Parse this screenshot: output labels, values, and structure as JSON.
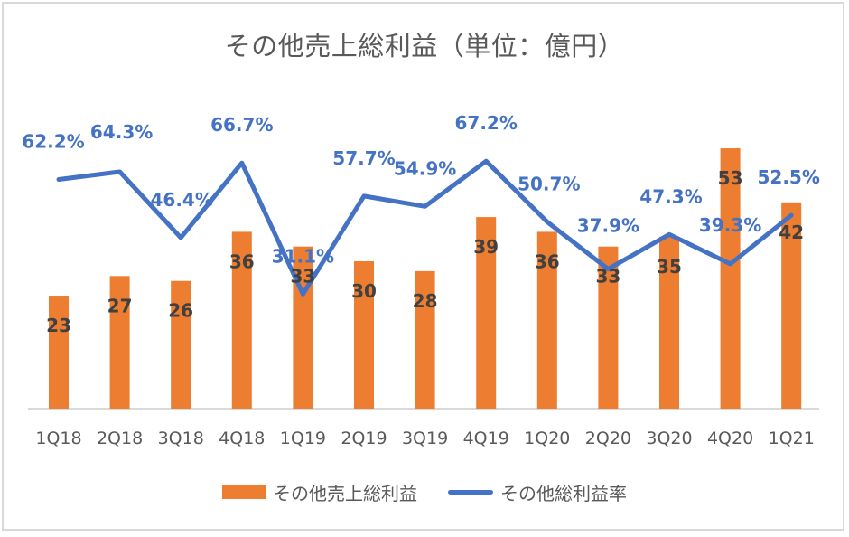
{
  "chart_data": {
    "type": "bar",
    "title": "その他売上総利益（単位：億円）",
    "categories": [
      "1Q18",
      "2Q18",
      "3Q18",
      "4Q18",
      "1Q19",
      "2Q19",
      "3Q19",
      "4Q19",
      "1Q20",
      "2Q20",
      "3Q20",
      "4Q20",
      "1Q21"
    ],
    "series": [
      {
        "name": "その他売上総利益",
        "type": "bar",
        "axis": "primary",
        "color": "#ED7D31",
        "values": [
          23,
          27,
          26,
          36,
          33,
          30,
          28,
          39,
          36,
          33,
          35,
          53,
          42
        ],
        "labels": [
          "23",
          "27",
          "26",
          "36",
          "33",
          "30",
          "28",
          "39",
          "36",
          "33",
          "35",
          "53",
          "42"
        ]
      },
      {
        "name": "その他総利益率",
        "type": "line",
        "axis": "secondary",
        "color": "#4472C4",
        "values": [
          62.2,
          64.3,
          46.4,
          66.7,
          31.1,
          57.7,
          54.9,
          67.2,
          50.7,
          37.9,
          47.3,
          39.3,
          52.5
        ],
        "labels": [
          "62.2%",
          "64.3%",
          "46.4%",
          "66.7%",
          "31.1%",
          "57.7%",
          "54.9%",
          "67.2%",
          "50.7%",
          "37.9%",
          "47.3%",
          "39.3%",
          "52.5%"
        ]
      }
    ],
    "xlabel": "",
    "ylabel": "",
    "ylim": [
      0,
      60
    ],
    "y2lim": [
      0,
      80
    ],
    "grid": false,
    "legend": "bottom"
  }
}
